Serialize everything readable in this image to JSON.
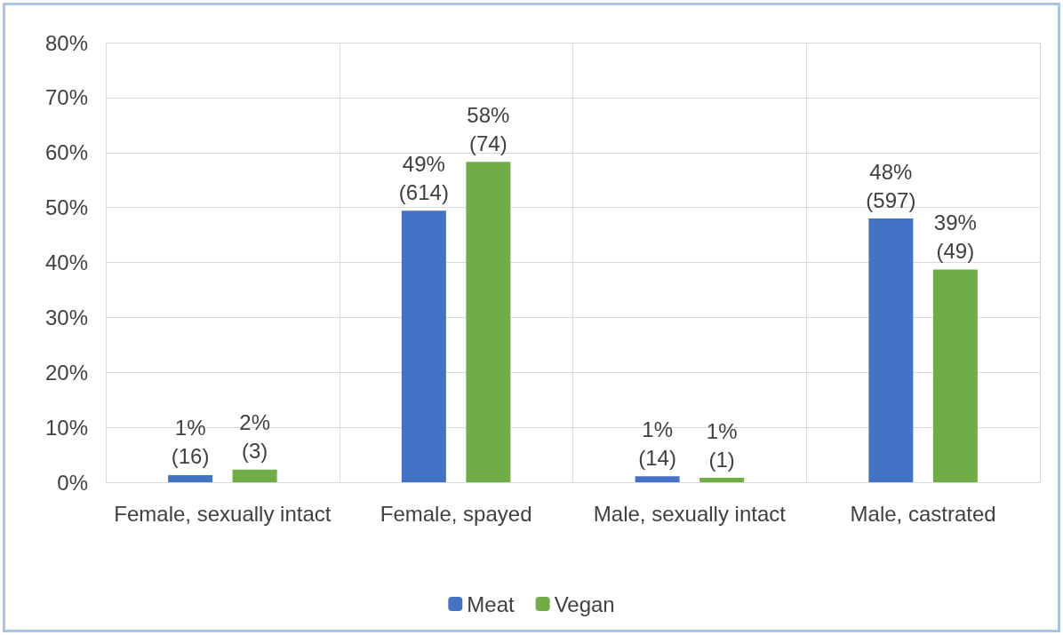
{
  "chart_data": {
    "type": "bar",
    "categories": [
      "Female, sexually intact",
      "Female, spayed",
      "Male, sexually intact",
      "Male, castrated"
    ],
    "series": [
      {
        "name": "Meat",
        "color": "#4472c4",
        "values": [
          1.3,
          49.4,
          1.1,
          48.0
        ],
        "value_labels": [
          "1%\n(16)",
          "49%\n(614)",
          "1%\n(14)",
          "48%\n(597)"
        ]
      },
      {
        "name": "Vegan",
        "color": "#70ad47",
        "values": [
          2.3,
          58.3,
          0.8,
          38.7
        ],
        "value_labels": [
          "2%\n(3)",
          "58%\n(74)",
          "1%\n(1)",
          "39%\n(49)"
        ]
      }
    ],
    "ylim": [
      0,
      80
    ],
    "yticks": [
      {
        "value": 0,
        "label": "0%"
      },
      {
        "value": 10,
        "label": "10%"
      },
      {
        "value": 20,
        "label": "20%"
      },
      {
        "value": 30,
        "label": "30%"
      },
      {
        "value": 40,
        "label": "40%"
      },
      {
        "value": 50,
        "label": "50%"
      },
      {
        "value": 60,
        "label": "60%"
      },
      {
        "value": 70,
        "label": "70%"
      },
      {
        "value": 80,
        "label": "80%"
      }
    ],
    "grid": true,
    "legend": "bottom"
  }
}
